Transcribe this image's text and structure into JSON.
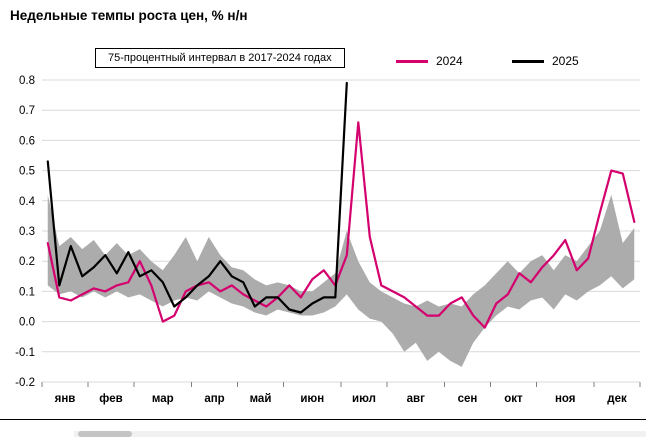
{
  "page": {
    "title": "Недельные темпы роста цен, % н/н"
  },
  "legend": {
    "band_label": "75-процентный интервал в 2017-2024 годах",
    "series_2024_label": "2024",
    "series_2025_label": "2025"
  },
  "colors": {
    "band": "#a8a8a8",
    "line_2024": "#d4006e",
    "line_2025": "#000000",
    "grid": "#d9d9d9",
    "tick_text": "#000000"
  },
  "chart_data": {
    "type": "line",
    "title": "Недельные темпы роста цен, % н/н",
    "ylabel": "% н/н",
    "ylim": [
      -0.2,
      0.8
    ],
    "y_ticks": [
      0.8,
      0.7,
      0.6,
      0.5,
      0.4,
      0.3,
      0.2,
      0.1,
      0.0,
      -0.1,
      -0.2
    ],
    "x_tick_labels": [
      "янв",
      "фев",
      "мар",
      "апр",
      "май",
      "июн",
      "июл",
      "авг",
      "сен",
      "окт",
      "ноя",
      "дек"
    ],
    "weeks_per_month": [
      4,
      4,
      5,
      4,
      4,
      5,
      4,
      5,
      4,
      4,
      5,
      4
    ],
    "grid": true,
    "legend_position": "top",
    "band": {
      "name": "75-процентный интервал в 2017-2024 годах",
      "upper": [
        0.42,
        0.25,
        0.28,
        0.24,
        0.27,
        0.22,
        0.26,
        0.22,
        0.24,
        0.2,
        0.17,
        0.22,
        0.28,
        0.2,
        0.28,
        0.22,
        0.18,
        0.17,
        0.14,
        0.12,
        0.13,
        0.12,
        0.1,
        0.1,
        0.13,
        0.16,
        0.3,
        0.2,
        0.13,
        0.1,
        0.08,
        0.06,
        0.05,
        0.07,
        0.05,
        0.06,
        0.05,
        0.09,
        0.12,
        0.16,
        0.2,
        0.16,
        0.2,
        0.22,
        0.17,
        0.22,
        0.2,
        0.25,
        0.3,
        0.42,
        0.26,
        0.31
      ],
      "lower": [
        0.12,
        0.09,
        0.1,
        0.08,
        0.1,
        0.08,
        0.1,
        0.08,
        0.09,
        0.07,
        0.05,
        0.07,
        0.08,
        0.07,
        0.1,
        0.08,
        0.06,
        0.05,
        0.03,
        0.02,
        0.04,
        0.03,
        0.02,
        0.02,
        0.03,
        0.05,
        0.09,
        0.04,
        0.01,
        0.0,
        -0.04,
        -0.1,
        -0.07,
        -0.13,
        -0.1,
        -0.13,
        -0.15,
        -0.07,
        -0.02,
        0.02,
        0.05,
        0.04,
        0.07,
        0.08,
        0.04,
        0.09,
        0.07,
        0.1,
        0.12,
        0.15,
        0.11,
        0.14
      ]
    },
    "series": [
      {
        "name": "2024",
        "color": "#d4006e",
        "values": [
          0.26,
          0.08,
          0.07,
          0.09,
          0.11,
          0.1,
          0.12,
          0.13,
          0.2,
          0.12,
          0.0,
          0.02,
          0.1,
          0.12,
          0.13,
          0.1,
          0.12,
          0.09,
          0.07,
          0.05,
          0.08,
          0.12,
          0.08,
          0.14,
          0.17,
          0.12,
          0.22,
          0.66,
          0.28,
          0.12,
          0.1,
          0.08,
          0.05,
          0.02,
          0.02,
          0.06,
          0.08,
          0.02,
          -0.02,
          0.06,
          0.09,
          0.16,
          0.13,
          0.18,
          0.22,
          0.27,
          0.17,
          0.21,
          0.36,
          0.5,
          0.49,
          0.33
        ]
      },
      {
        "name": "2025",
        "color": "#000000",
        "values": [
          0.53,
          0.12,
          0.25,
          0.15,
          0.18,
          0.22,
          0.16,
          0.23,
          0.15,
          0.17,
          0.13,
          0.05,
          0.08,
          0.12,
          0.15,
          0.2,
          0.15,
          0.13,
          0.05,
          0.08,
          0.08,
          0.04,
          0.03,
          0.06,
          0.08,
          0.08,
          0.79,
          null,
          null,
          null,
          null,
          null,
          null,
          null,
          null,
          null,
          null,
          null,
          null,
          null,
          null,
          null,
          null,
          null,
          null,
          null,
          null,
          null,
          null,
          null,
          null,
          null
        ]
      }
    ]
  }
}
